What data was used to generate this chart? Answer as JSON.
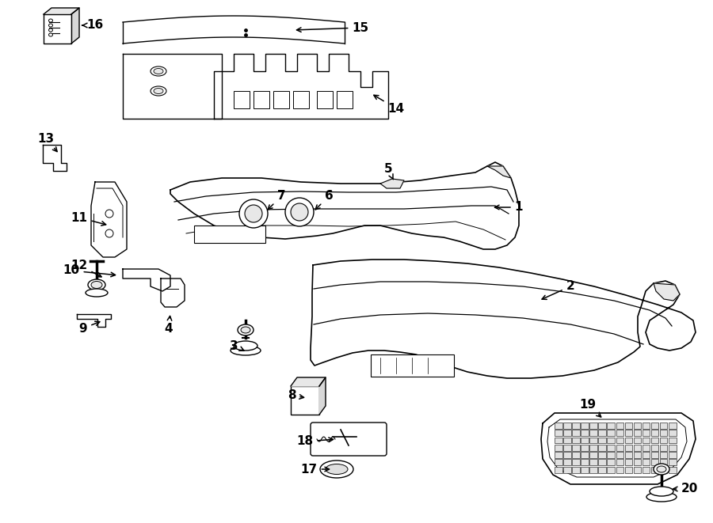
{
  "background_color": "#ffffff",
  "line_color": "#000000",
  "line_width": 1.0,
  "label_fontsize": 11,
  "fig_width": 9.0,
  "fig_height": 6.61,
  "dpi": 100
}
